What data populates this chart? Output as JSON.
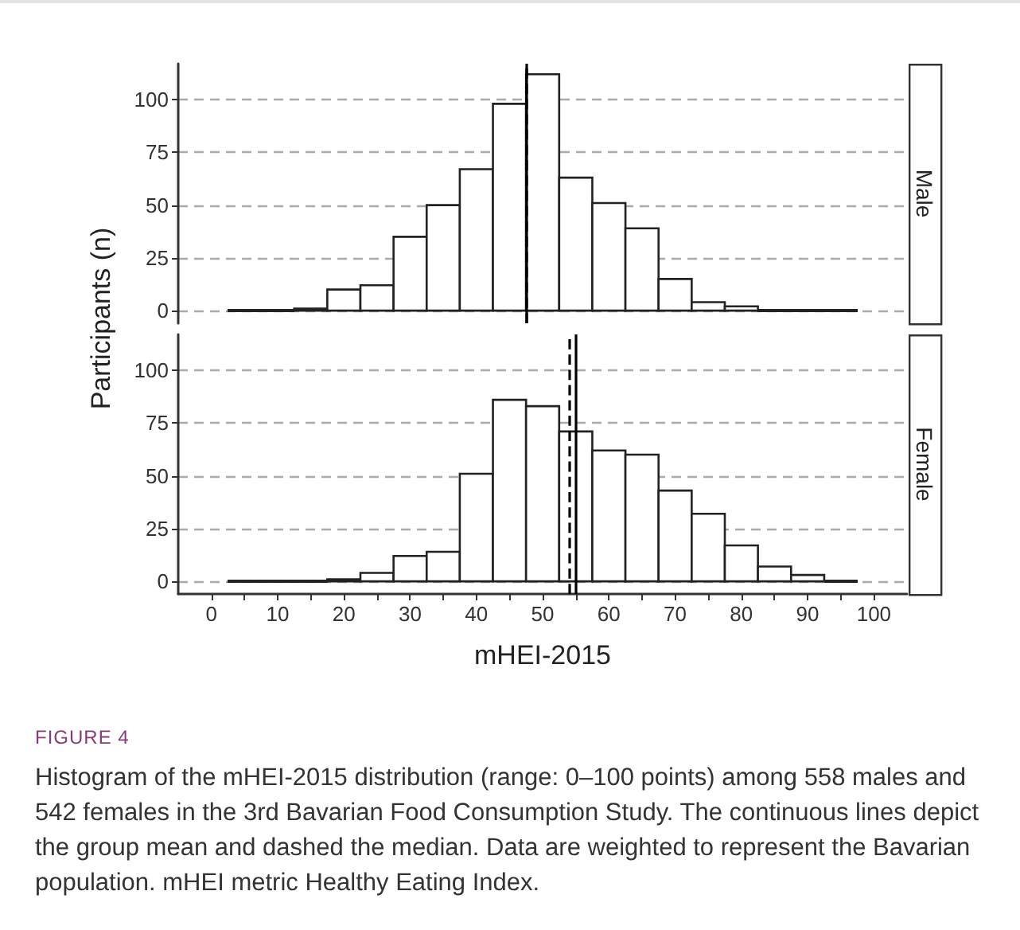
{
  "chart_data": [
    {
      "type": "histogram",
      "title": "Male",
      "ylabel": "Participants (n)",
      "bins": [
        2.5,
        7.5,
        12.5,
        17.5,
        22.5,
        27.5,
        32.5,
        37.5,
        42.5,
        47.5,
        52.5,
        57.5,
        62.5,
        67.5,
        72.5,
        77.5,
        82.5,
        87.5,
        92.5,
        97.5
      ],
      "values": [
        0,
        0,
        1,
        10,
        12,
        35,
        50,
        67,
        98,
        112,
        63,
        51,
        39,
        15,
        4,
        2,
        0,
        0,
        0
      ],
      "color": "#ffffff",
      "xlim": [
        -5,
        105
      ],
      "ylim": [
        -6,
        117
      ],
      "yticks": [
        0,
        25,
        50,
        75,
        100
      ],
      "grid": "y",
      "tick_labels": "y",
      "ref_lines": [
        {
          "axis": "x",
          "value": 47.6,
          "line_style": "solid"
        },
        {
          "axis": "x",
          "value": 47.5,
          "line_style": "dashed"
        }
      ]
    },
    {
      "type": "histogram",
      "title": "Female",
      "xlabel": "mHEI-2015",
      "bins": [
        2.5,
        7.5,
        12.5,
        17.5,
        22.5,
        27.5,
        32.5,
        37.5,
        42.5,
        47.5,
        52.5,
        57.5,
        62.5,
        67.5,
        72.5,
        77.5,
        82.5,
        87.5,
        92.5,
        97.5
      ],
      "values": [
        0,
        0,
        0,
        1,
        4,
        12,
        14,
        51,
        86,
        83,
        71,
        62,
        60,
        43,
        32,
        17,
        7,
        3,
        0
      ],
      "color": "#ffffff",
      "xlim": [
        -5,
        105
      ],
      "ylim": [
        -6,
        117
      ],
      "yticks": [
        0,
        25,
        50,
        75,
        100
      ],
      "xticks": [
        0,
        {
          "value": 5,
          "label": null
        },
        10,
        {
          "value": 15,
          "label": null
        },
        20,
        {
          "value": 25,
          "label": null
        },
        30,
        {
          "value": 35,
          "label": null
        },
        40,
        {
          "value": 45,
          "label": null
        },
        50,
        {
          "value": 55,
          "label": null
        },
        60,
        {
          "value": 65,
          "label": null
        },
        70,
        {
          "value": 75,
          "label": null
        },
        80,
        {
          "value": 85,
          "label": null
        },
        90,
        {
          "value": 95,
          "label": null
        },
        100
      ],
      "grid": "y",
      "ref_lines": [
        {
          "axis": "x",
          "value": 55.1,
          "line_style": "solid"
        },
        {
          "axis": "x",
          "value": 54.1,
          "line_style": "dashed"
        }
      ],
      "annotations": [
        "FIGURE 4",
        "Histogram of the mHEI-2015 distribution (range: 0–100 points) among 558 males and 542 females in the 3rd Bavarian Food Consumption Study. The continuous lines depict the group mean and dashed the median. Data are weighted to represent the Bavarian population. mHEI metric Healthy Eating Index."
      ]
    }
  ]
}
